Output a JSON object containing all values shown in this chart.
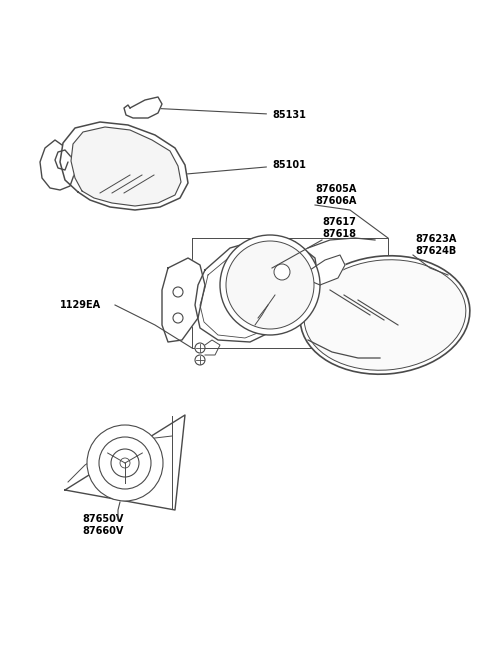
{
  "bg_color": "#ffffff",
  "line_color": "#4a4a4a",
  "label_color": "#000000",
  "parts": [
    {
      "id": "85131"
    },
    {
      "id": "85101"
    },
    {
      "id": "87605A\n87606A"
    },
    {
      "id": "87617\n87618"
    },
    {
      "id": "87623A\n87624B"
    },
    {
      "id": "1129EA"
    },
    {
      "id": "87650V\n87660V"
    }
  ]
}
